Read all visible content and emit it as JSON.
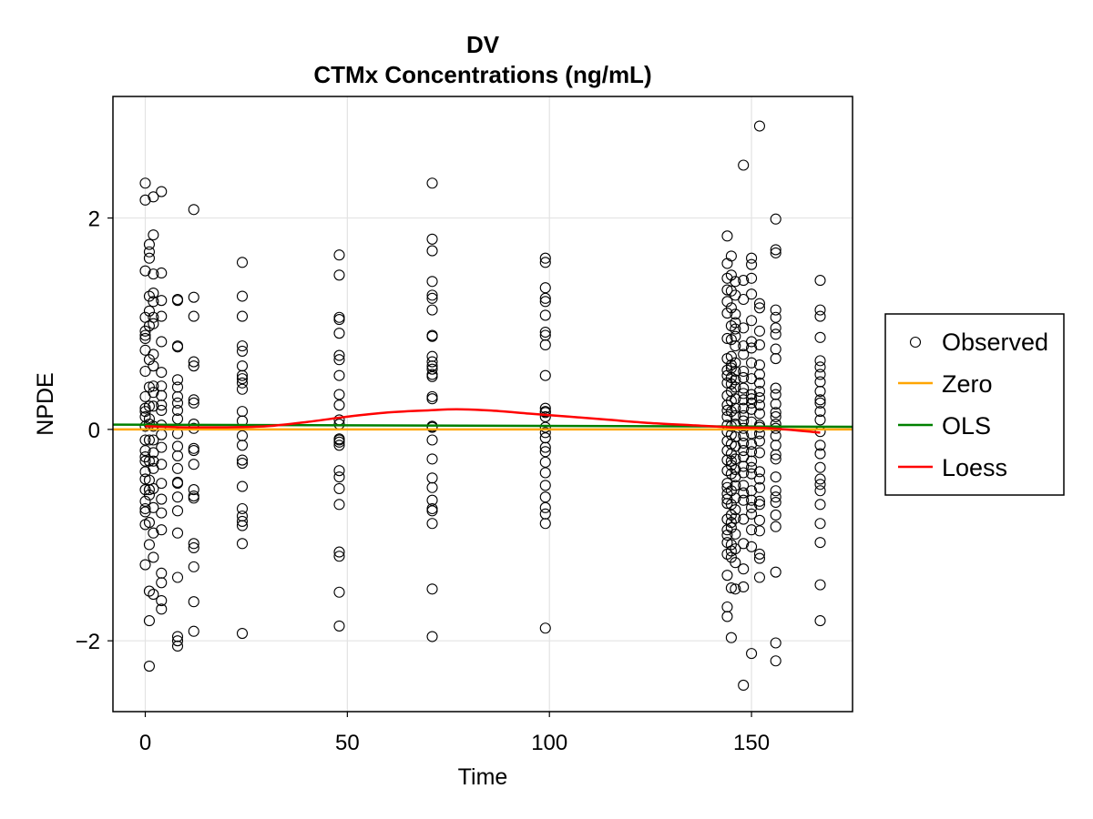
{
  "chart_data": {
    "type": "scatter",
    "title": "DV",
    "subtitle": "CTMx Concentrations (ng/mL)",
    "xlabel": "Time",
    "ylabel": "NPDE",
    "xlim": [
      -8,
      175
    ],
    "ylim": [
      -2.67,
      3.15
    ],
    "xticks": [
      0,
      50,
      100,
      150
    ],
    "yticks": [
      -2,
      0,
      2
    ],
    "xtick_labels": [
      "0",
      "50",
      "100",
      "150"
    ],
    "ytick_labels": [
      "−2",
      "0",
      "2"
    ],
    "grid": true,
    "legend_position": "right",
    "legend": [
      {
        "label": "Observed",
        "kind": "marker",
        "color": "#000000"
      },
      {
        "label": "Zero",
        "kind": "line",
        "color": "#ffa500"
      },
      {
        "label": "OLS",
        "kind": "line",
        "color": "#008000"
      },
      {
        "label": "Loess",
        "kind": "line",
        "color": "#ff0000"
      }
    ],
    "observed": [
      {
        "x": 0,
        "y": [
          2.33,
          2.17,
          1.5,
          1.06,
          0.93,
          0.86,
          0.75,
          0.55,
          0.31,
          0.2,
          0.12,
          0.03,
          -0.1,
          -0.2,
          -0.3,
          -0.47,
          -0.57,
          -0.68,
          -0.78,
          -0.9,
          -1.28,
          -0.26,
          0.17,
          0.89,
          -0.4,
          -0.75
        ]
      },
      {
        "x": 1,
        "y": [
          1.75,
          1.62,
          1.26,
          0.98,
          0.66,
          0.4,
          0.22,
          0.05,
          -0.1,
          -0.3,
          -0.57,
          -0.88,
          -1.09,
          -1.53,
          -1.81,
          -2.24,
          1.68,
          0.1,
          -0.62,
          1.12,
          -0.48
        ]
      },
      {
        "x": 2,
        "y": [
          1.84,
          1.47,
          1.29,
          1.21,
          1.06,
          1.0,
          0.71,
          0.41,
          0.35,
          0.22,
          0.03,
          -0.1,
          -0.22,
          -0.37,
          -0.56,
          -0.74,
          -0.98,
          -1.21,
          -1.56,
          2.2,
          0.6,
          -0.3
        ]
      },
      {
        "x": 4,
        "y": [
          2.25,
          1.48,
          1.22,
          1.07,
          0.83,
          0.54,
          0.41,
          0.32,
          0.18,
          0.04,
          -0.17,
          -0.33,
          -0.51,
          -0.66,
          -0.79,
          -1.36,
          -1.45,
          -1.62,
          -1.7,
          0.23,
          -0.05,
          -0.95
        ]
      },
      {
        "x": 8,
        "y": [
          1.23,
          1.22,
          0.79,
          0.78,
          0.47,
          0.4,
          0.31,
          0.25,
          0.1,
          -0.04,
          -0.16,
          -0.25,
          -0.37,
          -0.5,
          -0.64,
          -0.77,
          -0.98,
          -1.4,
          -1.96,
          -2.0,
          -2.05,
          0.18,
          -0.51
        ]
      },
      {
        "x": 12,
        "y": [
          2.08,
          1.25,
          1.07,
          0.64,
          0.6,
          0.28,
          0.25,
          0.05,
          -0.18,
          -0.2,
          -0.33,
          -0.57,
          -0.65,
          -1.08,
          -1.12,
          -1.3,
          -1.63,
          -1.91,
          0.01,
          -0.63
        ]
      },
      {
        "x": 24,
        "y": [
          1.58,
          1.26,
          1.07,
          0.79,
          0.74,
          0.6,
          0.51,
          0.44,
          0.38,
          0.17,
          0.08,
          -0.06,
          -0.29,
          -0.32,
          -0.54,
          -0.75,
          -0.82,
          -0.87,
          -0.91,
          -1.08,
          -1.93,
          0.48,
          -0.15
        ]
      },
      {
        "x": 48,
        "y": [
          1.65,
          1.46,
          1.06,
          1.04,
          0.91,
          0.66,
          0.51,
          0.33,
          0.23,
          0.09,
          0.05,
          -0.09,
          -0.12,
          -0.15,
          -0.39,
          -0.45,
          -0.56,
          -0.71,
          -1.16,
          -1.2,
          -1.54,
          -1.86,
          0.7,
          -0.1
        ]
      },
      {
        "x": 71,
        "y": [
          2.33,
          1.8,
          1.69,
          1.4,
          1.27,
          1.24,
          1.13,
          0.89,
          0.88,
          0.69,
          0.64,
          0.6,
          0.52,
          0.5,
          0.31,
          0.29,
          0.03,
          -0.1,
          -0.28,
          -0.46,
          -0.55,
          -0.67,
          -0.75,
          -0.77,
          -0.89,
          -1.51,
          -1.96,
          0.57,
          0.02
        ]
      },
      {
        "x": 99,
        "y": [
          1.62,
          1.58,
          1.34,
          1.24,
          1.21,
          1.08,
          0.92,
          0.89,
          0.8,
          0.51,
          0.2,
          0.17,
          0.12,
          0.02,
          -0.08,
          -0.17,
          -0.21,
          -0.31,
          -0.41,
          -0.53,
          -0.64,
          -0.74,
          -0.8,
          -0.89,
          -1.88,
          0.16,
          -0.03
        ]
      },
      {
        "x": 144,
        "y": [
          1.83,
          1.57,
          1.43,
          1.32,
          1.21,
          1.1,
          0.86,
          0.67,
          0.51,
          0.44,
          0.32,
          0.18,
          0.12,
          0.04,
          -0.02,
          -0.11,
          -0.2,
          -0.29,
          -0.39,
          -0.51,
          -0.61,
          -0.66,
          -0.7,
          -0.95,
          -1.0,
          -1.07,
          -1.18,
          -1.38,
          -1.68,
          -1.77,
          0.23,
          -0.85,
          0.56,
          -0.55
        ]
      },
      {
        "x": 145,
        "y": [
          1.64,
          1.46,
          1.31,
          1.15,
          0.98,
          0.85,
          0.69,
          0.58,
          0.49,
          0.36,
          0.27,
          0.17,
          0.03,
          -0.05,
          -0.14,
          -0.23,
          -0.34,
          -0.42,
          -0.58,
          -0.71,
          -0.81,
          -0.93,
          -1.09,
          -1.15,
          -1.21,
          -1.5,
          -1.97,
          0.61,
          -0.3,
          0.43,
          -0.88
        ]
      },
      {
        "x": 146,
        "y": [
          1.4,
          1.27,
          1.09,
          1.01,
          0.88,
          0.79,
          0.63,
          0.55,
          0.47,
          0.4,
          0.29,
          0.13,
          0.05,
          -0.07,
          -0.16,
          -0.28,
          -0.38,
          -0.53,
          -0.65,
          -0.76,
          -0.84,
          -0.99,
          -1.13,
          -1.26,
          -1.51,
          0.2,
          -0.45,
          0.95
        ]
      },
      {
        "x": 148,
        "y": [
          2.5,
          1.41,
          1.23,
          0.96,
          0.79,
          0.71,
          0.55,
          0.49,
          0.39,
          0.34,
          0.28,
          0.2,
          0.08,
          0.01,
          -0.06,
          -0.13,
          -0.2,
          -0.26,
          -0.35,
          -0.41,
          -0.6,
          -0.67,
          -0.85,
          -1.08,
          -1.32,
          -1.49,
          -2.42,
          -0.53,
          0.13
        ]
      },
      {
        "x": 150,
        "y": [
          1.62,
          1.56,
          1.43,
          1.28,
          1.03,
          0.83,
          0.77,
          0.63,
          0.48,
          0.33,
          0.25,
          0.19,
          0.07,
          -0.04,
          -0.14,
          -0.21,
          -0.3,
          -0.42,
          -0.58,
          -0.67,
          -0.74,
          -0.8,
          -0.95,
          -1.11,
          -2.12,
          0.29,
          -0.36
        ]
      },
      {
        "x": 152,
        "y": [
          2.87,
          1.19,
          1.15,
          0.93,
          0.8,
          0.52,
          0.44,
          0.36,
          0.3,
          0.23,
          0.15,
          0.04,
          -0.04,
          -0.11,
          -0.22,
          -0.4,
          -0.47,
          -0.68,
          -0.71,
          -0.86,
          -0.96,
          -1.18,
          -1.22,
          -1.4,
          0.61,
          -0.55,
          0.02
        ]
      },
      {
        "x": 156,
        "y": [
          1.99,
          1.7,
          1.67,
          1.13,
          1.06,
          0.96,
          0.9,
          0.76,
          0.67,
          0.39,
          0.33,
          0.24,
          0.16,
          0.05,
          0.01,
          -0.06,
          -0.15,
          -0.24,
          -0.28,
          -0.58,
          -0.64,
          -0.69,
          -0.81,
          -0.92,
          -1.35,
          -2.02,
          -2.19,
          0.12,
          -0.45
        ]
      },
      {
        "x": 167,
        "y": [
          1.41,
          1.13,
          1.07,
          0.87,
          0.65,
          0.59,
          0.52,
          0.45,
          0.36,
          0.28,
          0.17,
          0.09,
          -0.02,
          -0.15,
          -0.23,
          -0.36,
          -0.47,
          -0.52,
          -0.58,
          -0.71,
          -0.89,
          -1.07,
          -1.47,
          -1.81,
          0.25
        ]
      }
    ],
    "zero_line": {
      "x": [
        -8,
        175
      ],
      "y": [
        0,
        0
      ]
    },
    "ols_line": {
      "x": [
        -8,
        175
      ],
      "y": [
        0.045,
        0.025
      ]
    },
    "loess_line": {
      "x": [
        0,
        10,
        20,
        30,
        40,
        50,
        60,
        70,
        77,
        85,
        95,
        105,
        115,
        125,
        135,
        145,
        155,
        167
      ],
      "y": [
        0.03,
        0.02,
        0.02,
        0.03,
        0.07,
        0.12,
        0.16,
        0.18,
        0.19,
        0.18,
        0.15,
        0.12,
        0.09,
        0.06,
        0.04,
        0.02,
        0.01,
        -0.03
      ]
    }
  }
}
